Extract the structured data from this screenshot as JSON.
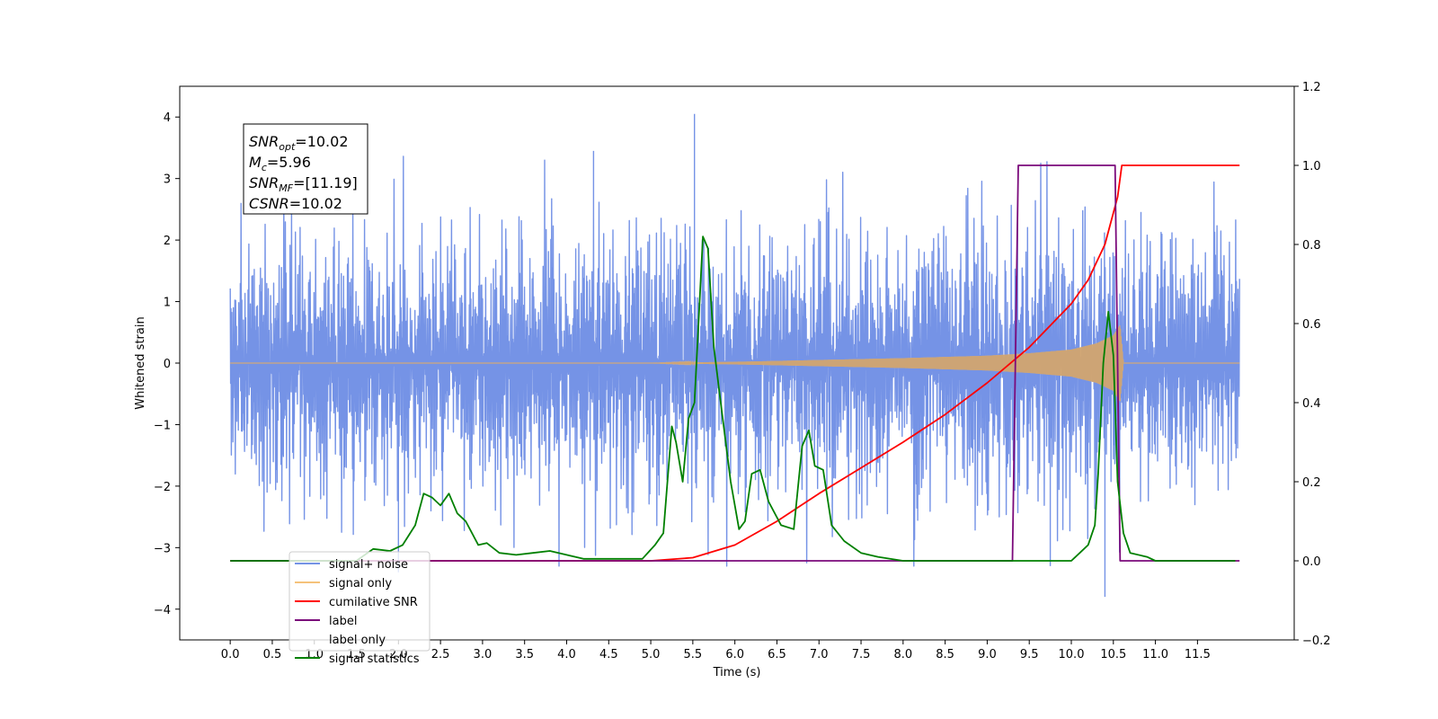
{
  "chart_data": {
    "type": "line",
    "xlabel": "Time (s)",
    "ylabel_left": "Whitened strain",
    "ylabel_right": "",
    "xlim": [
      -0.6,
      12.65
    ],
    "ylim_left": [
      -4.5,
      4.5
    ],
    "ylim_right": [
      -0.2,
      1.2
    ],
    "x_ticks": [
      0.0,
      0.5,
      1.0,
      1.5,
      2.0,
      2.5,
      3.0,
      3.5,
      4.0,
      4.5,
      5.0,
      5.5,
      6.0,
      6.5,
      7.0,
      7.5,
      8.0,
      8.5,
      9.0,
      9.5,
      10.0,
      10.5,
      11.0,
      11.5
    ],
    "x_tick_labels": [
      "0.0",
      "0.5",
      "1.0",
      "1.5",
      "2.0",
      "2.5",
      "3.0",
      "3.5",
      "4.0",
      "4.5",
      "5.0",
      "5.5",
      "6.0",
      "6.5",
      "7.0",
      "7.5",
      "8.0",
      "8.5",
      "9.0",
      "9.5",
      "10.0",
      "10.5",
      "11.0",
      "11.5"
    ],
    "y_left_ticks": [
      -4,
      -3,
      -2,
      -1,
      0,
      1,
      2,
      3,
      4
    ],
    "y_left_tick_labels": [
      "−4",
      "−3",
      "−2",
      "−1",
      "0",
      "1",
      "2",
      "3",
      "4"
    ],
    "y_right_ticks": [
      -0.2,
      0.0,
      0.2,
      0.4,
      0.6,
      0.8,
      1.0,
      1.2
    ],
    "y_right_tick_labels": [
      "−0.2",
      "0.0",
      "0.2",
      "0.4",
      "0.6",
      "0.8",
      "1.0",
      "1.2"
    ],
    "grid": false,
    "legend_placement": "lower-left",
    "annotation": {
      "lines": [
        {
          "sym": "SNR",
          "sub": "opt",
          "value": "=10.02"
        },
        {
          "sym": "M",
          "sub": "c",
          "value": "=5.96"
        },
        {
          "sym": "SNR",
          "sub": "MF",
          "value": "=[11.19]"
        },
        {
          "sym": "CSNR",
          "sub": "",
          "value": "=10.02"
        }
      ]
    },
    "series": [
      {
        "name": "signal+ noise",
        "axis": "left",
        "color": "#7593e6",
        "kind": "noise",
        "t_range": [
          0.0,
          12.0
        ],
        "envelope_peak": 2.4,
        "spike_max": 4.05,
        "spike_min": -3.8
      },
      {
        "name": "signal only",
        "axis": "left",
        "color": "#f5c27a",
        "kind": "chirp",
        "t_range": [
          0.0,
          12.0
        ],
        "amplitude_points": {
          "x": [
            0.0,
            5.0,
            6.0,
            7.0,
            8.0,
            9.0,
            9.5,
            10.0,
            10.3,
            10.5,
            10.58,
            10.62,
            12.0
          ],
          "y": [
            0.0,
            0.0,
            0.02,
            0.05,
            0.08,
            0.12,
            0.16,
            0.22,
            0.32,
            0.45,
            0.62,
            0.0,
            0.0
          ]
        }
      },
      {
        "name": "cumilative SNR",
        "axis": "right",
        "color": "#ff0000",
        "x": [
          0.0,
          5.0,
          5.5,
          6.0,
          6.5,
          7.0,
          7.5,
          8.0,
          8.5,
          9.0,
          9.5,
          10.0,
          10.2,
          10.4,
          10.55,
          10.6,
          12.0
        ],
        "y": [
          0.0,
          0.0,
          0.008,
          0.04,
          0.1,
          0.17,
          0.235,
          0.3,
          0.37,
          0.45,
          0.54,
          0.65,
          0.71,
          0.8,
          0.92,
          1.0,
          1.0
        ]
      },
      {
        "name": "label",
        "axis": "right",
        "color": "#7b0a7b",
        "x": [
          0.0,
          9.3,
          9.37,
          10.52,
          10.58,
          12.0
        ],
        "y": [
          0.0,
          0.0,
          1.0,
          1.0,
          0.0,
          0.0
        ]
      },
      {
        "name": "label only",
        "axis": "right",
        "color": "#d9d9d9",
        "hidden_legend_only": true
      },
      {
        "name": "signal statistics",
        "axis": "right",
        "color": "#008000",
        "x": [
          0.0,
          1.5,
          1.7,
          1.9,
          2.05,
          2.2,
          2.3,
          2.4,
          2.5,
          2.6,
          2.7,
          2.8,
          2.95,
          3.05,
          3.2,
          3.4,
          3.6,
          3.8,
          4.0,
          4.2,
          4.4,
          4.6,
          4.9,
          5.05,
          5.15,
          5.25,
          5.3,
          5.38,
          5.45,
          5.52,
          5.62,
          5.68,
          5.75,
          5.82,
          5.95,
          6.05,
          6.12,
          6.2,
          6.3,
          6.4,
          6.55,
          6.7,
          6.8,
          6.88,
          6.95,
          7.05,
          7.15,
          7.3,
          7.5,
          7.7,
          8.0,
          9.0,
          10.0,
          10.1,
          10.2,
          10.28,
          10.32,
          10.38,
          10.44,
          10.5,
          10.55,
          10.62,
          10.7,
          10.9,
          11.0,
          11.5,
          11.95
        ],
        "y": [
          0.0,
          0.0,
          0.03,
          0.025,
          0.04,
          0.09,
          0.17,
          0.16,
          0.14,
          0.17,
          0.12,
          0.1,
          0.04,
          0.045,
          0.02,
          0.015,
          0.02,
          0.025,
          0.015,
          0.005,
          0.005,
          0.005,
          0.005,
          0.04,
          0.07,
          0.34,
          0.3,
          0.2,
          0.36,
          0.4,
          0.82,
          0.79,
          0.54,
          0.42,
          0.2,
          0.08,
          0.1,
          0.22,
          0.23,
          0.15,
          0.09,
          0.08,
          0.29,
          0.33,
          0.24,
          0.23,
          0.09,
          0.05,
          0.02,
          0.01,
          0.0,
          0.0,
          0.0,
          0.02,
          0.04,
          0.09,
          0.22,
          0.5,
          0.63,
          0.52,
          0.2,
          0.07,
          0.02,
          0.01,
          0.0,
          0.0,
          0.0
        ]
      }
    ]
  }
}
